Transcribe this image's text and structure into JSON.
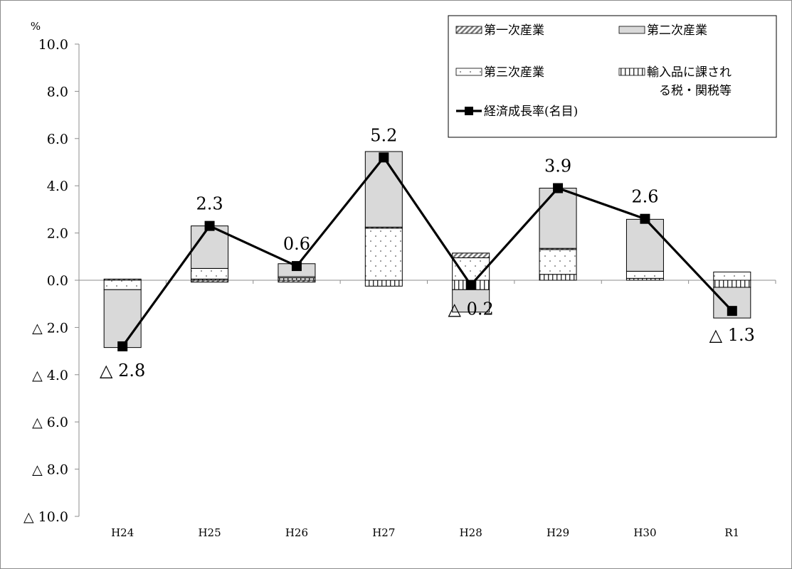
{
  "chart_data": {
    "type": "bar+line",
    "unit_label": "%",
    "categories": [
      "H24",
      "H25",
      "H26",
      "H27",
      "H28",
      "H29",
      "H30",
      "R1"
    ],
    "ylim": [
      -10,
      10
    ],
    "yticks": [
      10,
      8,
      6,
      4,
      2,
      0,
      -2,
      -4,
      -6,
      -8,
      -10
    ],
    "ytick_labels": [
      "10.0",
      "8.0",
      "6.0",
      "4.0",
      "2.0",
      "0.0",
      "△ 2.0",
      "△ 4.0",
      "△ 6.0",
      "△ 8.0",
      "△ 10.0"
    ],
    "grid": false,
    "legend_position": "top-right",
    "stacked_series": [
      {
        "name": "第一次産業",
        "values": [
          0.05,
          -0.08,
          -0.08,
          0.05,
          0.2,
          0.05,
          0.0,
          0.0
        ],
        "pattern": "diagonal"
      },
      {
        "name": "第二次産業",
        "values": [
          -2.45,
          1.8,
          0.55,
          3.2,
          -0.95,
          2.55,
          2.2,
          -1.3
        ],
        "pattern": "gray"
      },
      {
        "name": "第三次産業",
        "values": [
          -0.4,
          0.45,
          0.05,
          2.2,
          0.95,
          1.05,
          0.3,
          0.35
        ],
        "pattern": "dots"
      },
      {
        "name": "輸入品に課される税・関税等",
        "values": [
          0.0,
          0.05,
          0.1,
          -0.25,
          -0.4,
          0.25,
          0.08,
          -0.3
        ],
        "pattern": "vertical"
      }
    ],
    "line_series": {
      "name": "経済成長率(名目)",
      "values": [
        -2.8,
        2.3,
        0.6,
        5.2,
        -0.2,
        3.9,
        2.6,
        -1.3
      ],
      "labels": [
        "△ 2.8",
        "2.3",
        "0.6",
        "5.2",
        "△ 0.2",
        "3.9",
        "2.6",
        "△ 1.3"
      ],
      "label_positions": [
        "below",
        "above",
        "above",
        "above",
        "below",
        "above",
        "above",
        "below"
      ]
    }
  }
}
